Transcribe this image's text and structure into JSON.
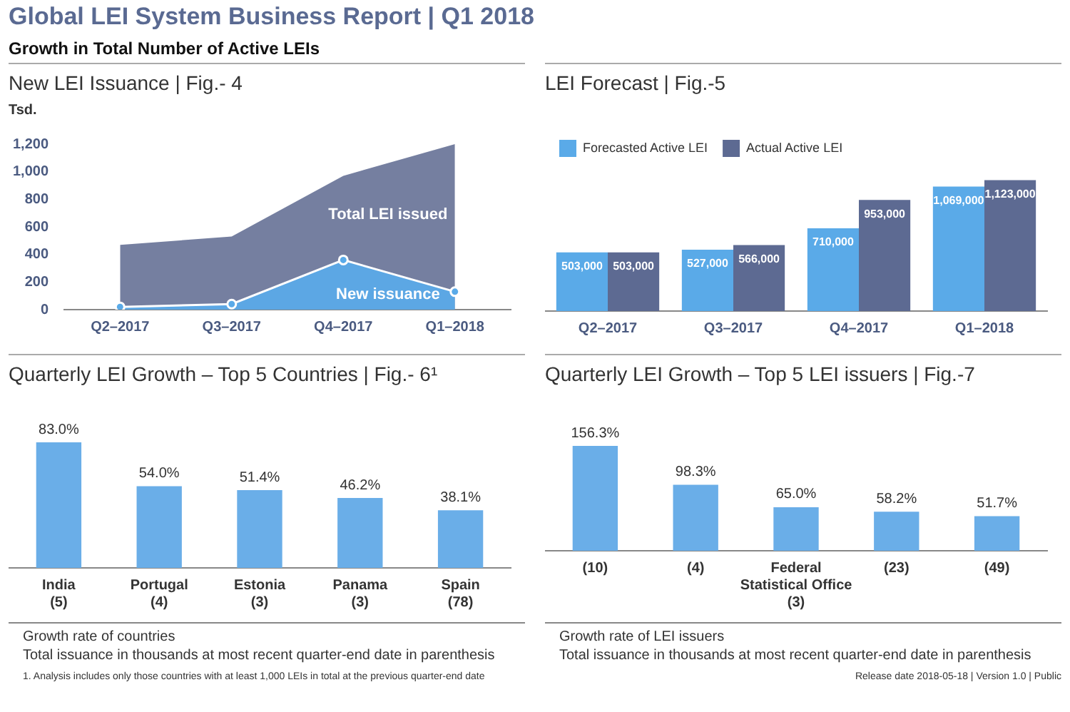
{
  "chart_data": [
    {
      "type": "area",
      "title": "New LEI Issuance | Fig.- 4",
      "ylabel": "Tsd.",
      "annotations": [
        "Global LEI System Business Report | Q1 2018",
        "Growth in Total Number of Active LEIs"
      ],
      "categories": [
        "Q2–2017",
        "Q3–2017",
        "Q4–2017",
        "Q1–2018"
      ],
      "series": [
        {
          "name": "Total LEI issued",
          "color": "#6b7699",
          "values": [
            470,
            530,
            970,
            1200
          ]
        },
        {
          "name": "New issuance",
          "color": "#5aaae8",
          "values": [
            20,
            40,
            360,
            130
          ],
          "marker": "circle"
        }
      ],
      "ylim": [
        0,
        1200
      ],
      "yticks": [
        0,
        200,
        400,
        600,
        800,
        {
          "value": 1000,
          "label": "1,000"
        },
        {
          "value": 1200,
          "label": "1,200"
        }
      ],
      "grid": false
    },
    {
      "type": "bar",
      "title": "LEI Forecast | Fig.-5",
      "categories": [
        "Q2–2017",
        "Q3–2017",
        "Q4–2017",
        "Q1–2018"
      ],
      "legend": "top left",
      "series": [
        {
          "name": "Forecasted Active LEI",
          "color": "#5aaae8",
          "values": [
            503000,
            527000,
            710000,
            1069000
          ],
          "value_labels": [
            "503,000",
            "527,000",
            "710,000",
            "1,069,000"
          ]
        },
        {
          "name": "Actual Active LEI",
          "color": "#5d6a92",
          "values": [
            503000,
            566000,
            953000,
            1123000
          ],
          "value_labels": [
            "503,000",
            "566,000",
            "953,000",
            "1,123,000"
          ]
        }
      ]
    },
    {
      "type": "bar",
      "title": "Quarterly LEI Growth – Top 5 Countries | Fig.- 6¹",
      "categories": [
        "India\n(5)",
        "Portugal\n(4)",
        "Estonia\n(3)",
        "Panama\n(3)",
        "Spain\n(78)"
      ],
      "values": [
        83.0,
        54.0,
        51.4,
        46.2,
        38.1
      ],
      "value_labels": [
        "83.0%",
        "54.0%",
        "51.4%",
        "46.2%",
        "38.1%"
      ],
      "color": "#6aaee8",
      "annotations": [
        "Growth rate of countries",
        "Total issuance in thousands at most recent quarter-end date in parenthesis",
        "1. Analysis includes only those countries with at least 1,000 LEIs in total at the previous quarter-end date"
      ]
    },
    {
      "type": "bar",
      "title": "Quarterly LEI Growth – Top 5 LEI issuers | Fig.-7",
      "categories": [
        "(10)",
        "(4)",
        "Federal\nStatistical Office\n(3)",
        "(23)",
        "(49)"
      ],
      "values": [
        156.3,
        98.3,
        65.0,
        58.2,
        51.7
      ],
      "value_labels": [
        "156.3%",
        "98.3%",
        "65.0%",
        "58.2%",
        "51.7%"
      ],
      "color": "#6aaee8",
      "annotations": [
        "Growth rate of LEI issuers",
        "Total issuance in thousands at most recent quarter-end date in parenthesis",
        "Release date 2018-05-18 | Version 1.0 | Public"
      ]
    }
  ]
}
